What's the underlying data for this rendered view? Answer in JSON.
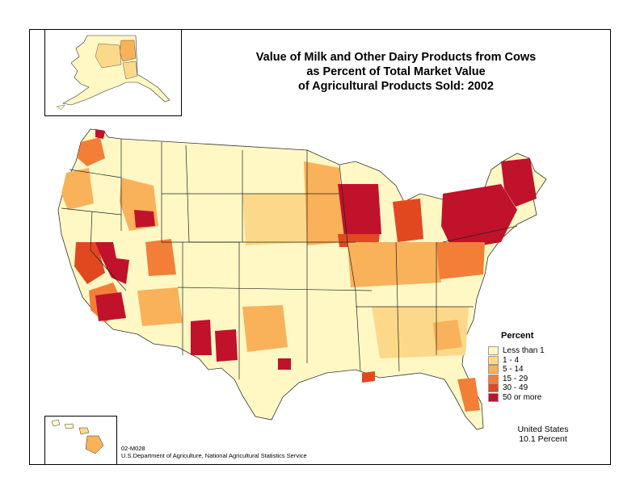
{
  "title": {
    "line1": "Value of Milk and Other Dairy Products from Cows",
    "line2": "as Percent of Total Market Value",
    "line3": "of Agricultural Products Sold:  2002"
  },
  "legend": {
    "title": "Percent",
    "classes": [
      {
        "label": "Less than 1",
        "color": "#FFF8C4"
      },
      {
        "label": "1 - 4",
        "color": "#FCD98A"
      },
      {
        "label": "5 - 14",
        "color": "#F9B15A"
      },
      {
        "label": "15 - 29",
        "color": "#F27E38"
      },
      {
        "label": "30 - 49",
        "color": "#E2481F"
      },
      {
        "label": "50 or more",
        "color": "#C0122A"
      }
    ]
  },
  "summary": {
    "region": "United States",
    "value": "10.1 Percent"
  },
  "footer": {
    "map_id": "02-M028",
    "source": "U.S.Department of Agriculture, National Agricultural Statistics Service"
  },
  "colors": {
    "border": "#000000",
    "background": "#ffffff"
  }
}
